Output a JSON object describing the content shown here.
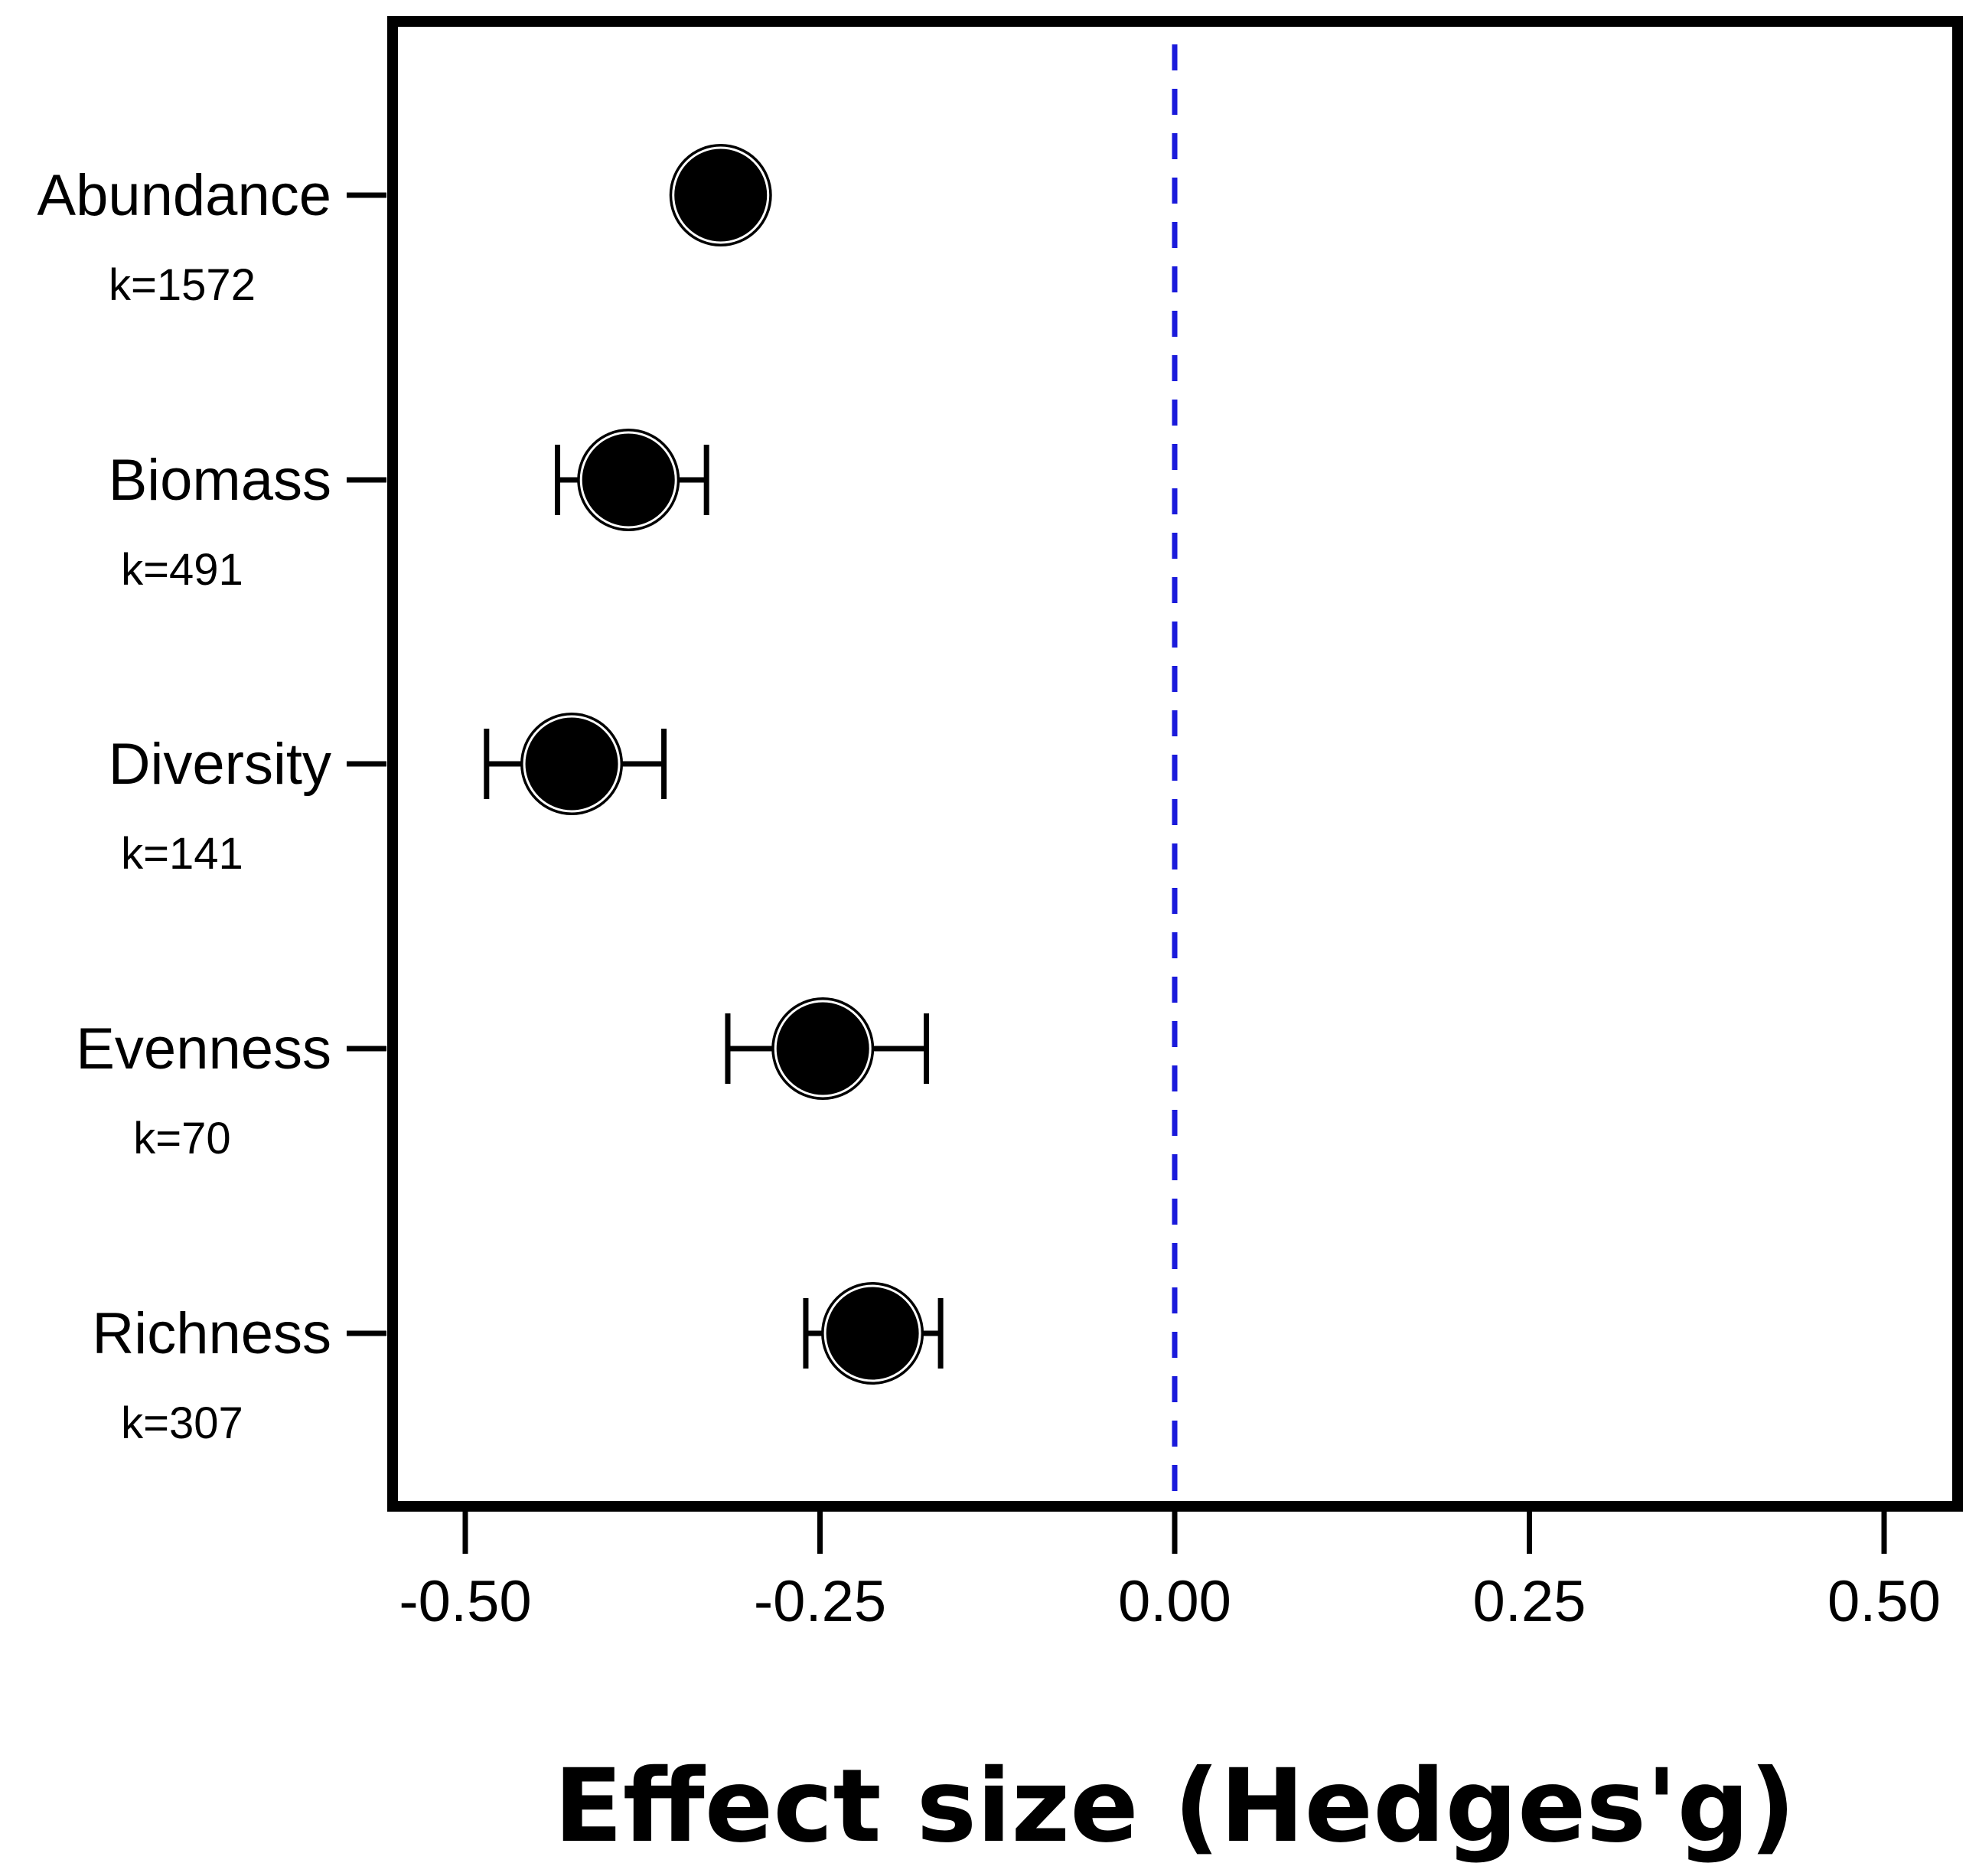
{
  "chart_data": {
    "type": "scatter",
    "subtype": "forest-plot",
    "title": "",
    "xlabel": "Effect size (Hedges'g)",
    "ylabel": "",
    "xlim": [
      -0.55,
      0.55
    ],
    "xticks": [
      -0.5,
      -0.25,
      0.0,
      0.25,
      0.5
    ],
    "xtick_labels": [
      "-0.50",
      "-0.25",
      "0.00",
      "0.25",
      "0.50"
    ],
    "reference_line": {
      "x": 0.0,
      "style": "dashed",
      "color": "#1a1adb"
    },
    "grid": false,
    "legend": "none",
    "points": [
      {
        "category": "Abundance",
        "k_label": "k=1572",
        "estimate": -0.32,
        "ci_low": -0.32,
        "ci_high": -0.32
      },
      {
        "category": "Biomass",
        "k_label": "k=491",
        "estimate": -0.385,
        "ci_low": -0.435,
        "ci_high": -0.33
      },
      {
        "category": "Diversity",
        "k_label": "k=141",
        "estimate": -0.425,
        "ci_low": -0.485,
        "ci_high": -0.36
      },
      {
        "category": "Evenness",
        "k_label": "k=70",
        "estimate": -0.248,
        "ci_low": -0.315,
        "ci_high": -0.175
      },
      {
        "category": "Richness",
        "k_label": "k=307",
        "estimate": -0.213,
        "ci_low": -0.26,
        "ci_high": -0.165
      }
    ],
    "colors": {
      "marker": "#000000",
      "frame": "#000000",
      "reference_line": "#1a1adb"
    }
  }
}
